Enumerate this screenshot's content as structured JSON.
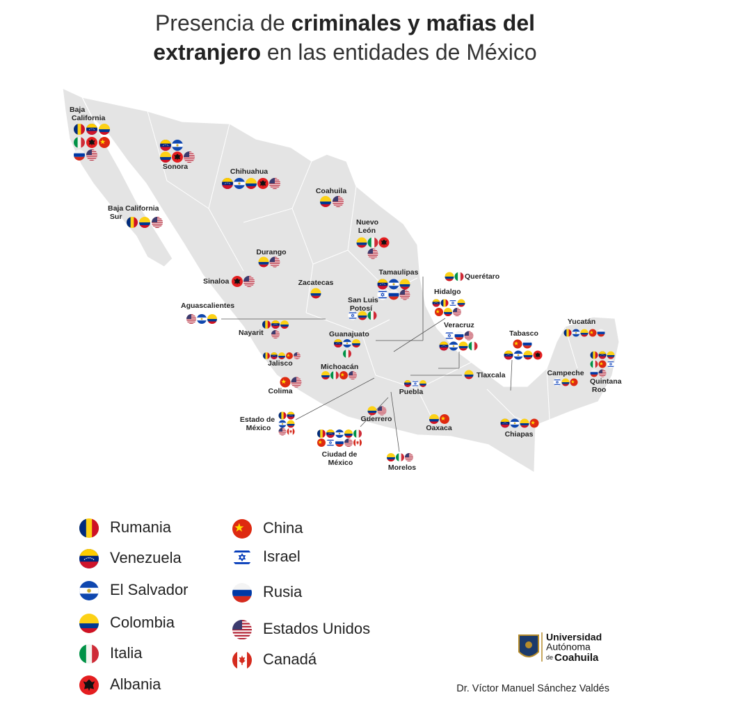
{
  "title": {
    "parts": [
      "Presencia de ",
      "criminales y mafias del",
      "extranjero",
      " en las entidades de México"
    ]
  },
  "states": [
    {
      "label": "Baja California",
      "flags": [
        [
          0,
          1,
          3
        ],
        [
          4,
          5,
          6
        ],
        [
          8,
          9
        ]
      ]
    },
    {
      "label": "Sonora",
      "flags": [
        [
          1,
          2
        ],
        [
          3,
          5,
          9
        ]
      ]
    },
    {
      "label": "Chihuahua",
      "flags": [
        [
          1,
          2,
          3,
          5,
          9
        ]
      ]
    },
    {
      "label": "Coahuila",
      "flags": [
        [
          3,
          9
        ]
      ]
    },
    {
      "label": "Nuevo León",
      "flags": [
        [
          3,
          4,
          5
        ],
        [
          9
        ]
      ]
    },
    {
      "label": "Baja California Sur",
      "flags": [
        [
          0,
          3,
          9
        ]
      ]
    },
    {
      "label": "Durango",
      "flags": [
        [
          3,
          9
        ]
      ]
    },
    {
      "label": "Sinaloa",
      "flags": [
        [
          5,
          9
        ]
      ]
    },
    {
      "label": "Zacatecas",
      "flags": [
        [
          3
        ]
      ]
    },
    {
      "label": "Tamaulipas",
      "flags": [
        [
          1,
          2,
          3
        ],
        [
          7,
          8,
          9
        ]
      ]
    },
    {
      "label": "Querétaro",
      "flags": [
        [
          3,
          4
        ]
      ]
    },
    {
      "label": "Hidalgo",
      "flags": [
        [
          1,
          0,
          7,
          3
        ],
        [
          6,
          3,
          9
        ]
      ]
    },
    {
      "label": "San Luis Potosí",
      "flags": [
        [
          7,
          3,
          4
        ]
      ]
    },
    {
      "label": "Aguascalientes",
      "flags": [
        [
          9,
          2,
          3
        ]
      ]
    },
    {
      "label": "Nayarit",
      "flags": [
        [
          0,
          1,
          3
        ],
        [
          9
        ]
      ]
    },
    {
      "label": "Guanajuato",
      "flags": [
        [
          1,
          2,
          3
        ],
        [
          4
        ]
      ]
    },
    {
      "label": "Veracruz",
      "flags": [
        [
          7,
          8,
          9
        ],
        [
          1,
          2,
          3,
          4
        ]
      ]
    },
    {
      "label": "Tabasco",
      "flags": [
        [
          6,
          8
        ],
        [
          1,
          2,
          3,
          5
        ]
      ]
    },
    {
      "label": "Yucatán",
      "flags": [
        [
          0,
          2,
          3,
          6,
          8
        ]
      ]
    },
    {
      "label": "Jalisco",
      "flags": [
        [
          0,
          1,
          3,
          6,
          9
        ]
      ]
    },
    {
      "label": "Michoacán",
      "flags": [
        [
          3,
          4,
          6,
          9
        ]
      ]
    },
    {
      "label": "Quintana Roo",
      "flags": [
        [
          0,
          1,
          3
        ],
        [
          4,
          6,
          7
        ],
        [
          8,
          9
        ]
      ]
    },
    {
      "label": "Campeche",
      "flags": [
        [
          7,
          3,
          6
        ]
      ]
    },
    {
      "label": "Tlaxcala",
      "flags": [
        [
          3
        ]
      ]
    },
    {
      "label": "Puebla",
      "flags": [
        [
          1,
          7,
          3
        ]
      ]
    },
    {
      "label": "Colima",
      "flags": [
        [
          6,
          9
        ]
      ]
    },
    {
      "label": "Estado de México",
      "flags": [
        [
          0,
          1
        ],
        [
          2,
          3
        ],
        [
          9,
          10
        ]
      ]
    },
    {
      "label": "Guerrero",
      "flags": [
        [
          3,
          9
        ]
      ]
    },
    {
      "label": "Oaxaca",
      "flags": [
        [
          3,
          6
        ]
      ]
    },
    {
      "label": "Chiapas",
      "flags": [
        [
          1,
          2,
          3,
          6
        ]
      ]
    },
    {
      "label": "Ciudad de México",
      "flags": [
        [
          0,
          1,
          2,
          3,
          4
        ],
        [
          6,
          7,
          8,
          9,
          10
        ]
      ]
    },
    {
      "label": "Morelos",
      "flags": [
        [
          3,
          4,
          9
        ]
      ]
    }
  ],
  "legend": [
    "Rumania",
    "Venezuela",
    "El Salvador",
    "Colombia",
    "Italia",
    "Albania",
    "China",
    "Israel",
    "Rusia",
    "Estados Unidos",
    "Canadá"
  ],
  "logo": {
    "line1": "Universidad",
    "line2": "Autónoma",
    "line3a": "de",
    "line3b": "Coahuila"
  },
  "author": "Dr. Víctor Manuel Sánchez Valdés"
}
